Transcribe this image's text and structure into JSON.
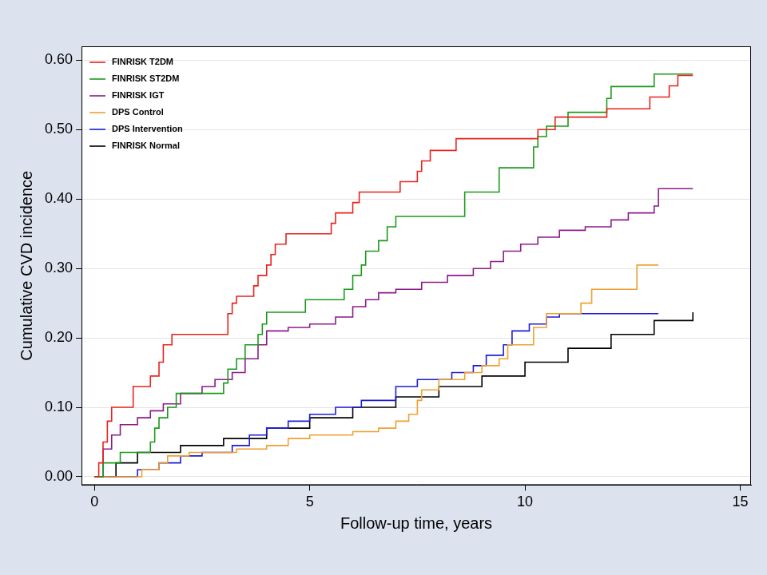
{
  "chart_data": {
    "type": "line",
    "x_label": "Follow-up time, years",
    "y_label": "Cumulative CVD incidence",
    "xlim": [
      -0.3,
      15.25
    ],
    "xticks": [
      0,
      5,
      10,
      15
    ],
    "ylim": [
      -0.012,
      0.62
    ],
    "yticks": [
      {
        "value": 0,
        "label": "0.00"
      },
      {
        "value": 0.1,
        "label": "0.10"
      },
      {
        "value": 0.2,
        "label": "0.20"
      },
      {
        "value": 0.3,
        "label": "0.30"
      },
      {
        "value": 0.4,
        "label": "0.40"
      },
      {
        "value": 0.5,
        "label": "0.50"
      },
      {
        "value": 0.6,
        "label": "0.60"
      }
    ],
    "grid": true,
    "legend": "upper left",
    "line_style": "step",
    "series": [
      {
        "name": "FINRISK T2DM",
        "color": "#e8231c",
        "x": [
          0,
          0.1,
          0.2,
          0.3,
          0.4,
          0.9,
          1.3,
          1.5,
          1.6,
          1.8,
          3.1,
          3.2,
          3.3,
          3.7,
          3.8,
          4.0,
          4.1,
          4.2,
          4.45,
          5.5,
          5.6,
          6.0,
          6.15,
          7.1,
          7.5,
          7.6,
          7.8,
          8.4,
          10.3,
          10.7,
          11.9,
          12.9,
          13.35,
          13.55,
          13.9
        ],
        "values": [
          0,
          0.02,
          0.05,
          0.08,
          0.1,
          0.13,
          0.145,
          0.165,
          0.19,
          0.205,
          0.235,
          0.25,
          0.26,
          0.275,
          0.29,
          0.305,
          0.32,
          0.335,
          0.35,
          0.365,
          0.38,
          0.395,
          0.41,
          0.425,
          0.44,
          0.455,
          0.47,
          0.487,
          0.5,
          0.518,
          0.53,
          0.547,
          0.563,
          0.578,
          0.578
        ]
      },
      {
        "name": "FINRISK ST2DM",
        "color": "#1a9a1a",
        "x": [
          0,
          0.2,
          0.6,
          1.3,
          1.4,
          1.5,
          1.7,
          1.9,
          3.0,
          3.1,
          3.3,
          3.5,
          3.8,
          3.9,
          4.0,
          4.9,
          5.8,
          6.0,
          6.2,
          6.3,
          6.6,
          6.8,
          7.0,
          8.6,
          8.7,
          9.4,
          10.2,
          10.3,
          10.5,
          11.0,
          11.9,
          12.0,
          13.0,
          13.9
        ],
        "values": [
          0,
          0.02,
          0.035,
          0.05,
          0.07,
          0.085,
          0.1,
          0.12,
          0.135,
          0.155,
          0.17,
          0.19,
          0.205,
          0.22,
          0.237,
          0.255,
          0.27,
          0.29,
          0.305,
          0.325,
          0.34,
          0.36,
          0.375,
          0.41,
          0.41,
          0.445,
          0.475,
          0.49,
          0.505,
          0.525,
          0.545,
          0.562,
          0.58,
          0.58
        ]
      },
      {
        "name": "FINRISK IGT",
        "color": "#8b1a89",
        "x": [
          0,
          0.2,
          0.4,
          0.6,
          1.0,
          1.3,
          1.6,
          2.0,
          2.5,
          2.8,
          3.2,
          3.5,
          3.8,
          4.0,
          4.5,
          5.0,
          5.6,
          6.0,
          6.3,
          6.6,
          7.0,
          7.6,
          8.2,
          8.8,
          9.2,
          9.5,
          9.9,
          10.3,
          10.8,
          11.4,
          12.0,
          12.4,
          13.0,
          13.1,
          13.9
        ],
        "values": [
          0,
          0.04,
          0.06,
          0.075,
          0.085,
          0.095,
          0.105,
          0.12,
          0.13,
          0.14,
          0.15,
          0.17,
          0.19,
          0.21,
          0.215,
          0.22,
          0.23,
          0.245,
          0.255,
          0.265,
          0.27,
          0.28,
          0.29,
          0.3,
          0.31,
          0.325,
          0.335,
          0.345,
          0.355,
          0.36,
          0.37,
          0.38,
          0.39,
          0.415,
          0.415
        ]
      },
      {
        "name": "DPS Control",
        "color": "#f0a030",
        "x": [
          0,
          1.1,
          1.5,
          1.7,
          2.2,
          3.3,
          4.0,
          4.5,
          5.0,
          6.0,
          6.6,
          7.0,
          7.3,
          7.5,
          7.6,
          8.0,
          8.6,
          9.0,
          9.4,
          9.6,
          10.2,
          10.5,
          11.3,
          11.55,
          12.6,
          13.1
        ],
        "values": [
          0,
          0.01,
          0.02,
          0.03,
          0.035,
          0.04,
          0.045,
          0.055,
          0.06,
          0.065,
          0.07,
          0.08,
          0.09,
          0.11,
          0.125,
          0.14,
          0.15,
          0.16,
          0.17,
          0.19,
          0.215,
          0.235,
          0.25,
          0.27,
          0.305,
          0.305
        ]
      },
      {
        "name": "DPS Intervention",
        "color": "#1c1cd6",
        "x": [
          0,
          1.0,
          1.5,
          2.0,
          2.5,
          3.2,
          3.6,
          4.0,
          4.5,
          5.0,
          5.6,
          6.2,
          7.0,
          7.5,
          8.3,
          8.8,
          9.1,
          9.5,
          9.7,
          10.1,
          10.5,
          10.8,
          13.1
        ],
        "values": [
          0,
          0.01,
          0.02,
          0.03,
          0.035,
          0.045,
          0.06,
          0.07,
          0.08,
          0.09,
          0.1,
          0.11,
          0.13,
          0.14,
          0.15,
          0.16,
          0.175,
          0.19,
          0.21,
          0.22,
          0.23,
          0.235,
          0.235
        ]
      },
      {
        "name": "FINRISK Normal",
        "color": "#000000",
        "x": [
          0,
          0.5,
          1,
          2,
          3,
          4,
          5,
          6,
          7,
          8,
          9,
          10,
          11,
          12,
          13,
          13.9
        ],
        "values": [
          0,
          0.02,
          0.035,
          0.045,
          0.055,
          0.07,
          0.085,
          0.1,
          0.115,
          0.13,
          0.145,
          0.165,
          0.185,
          0.205,
          0.225,
          0.237
        ]
      }
    ]
  }
}
